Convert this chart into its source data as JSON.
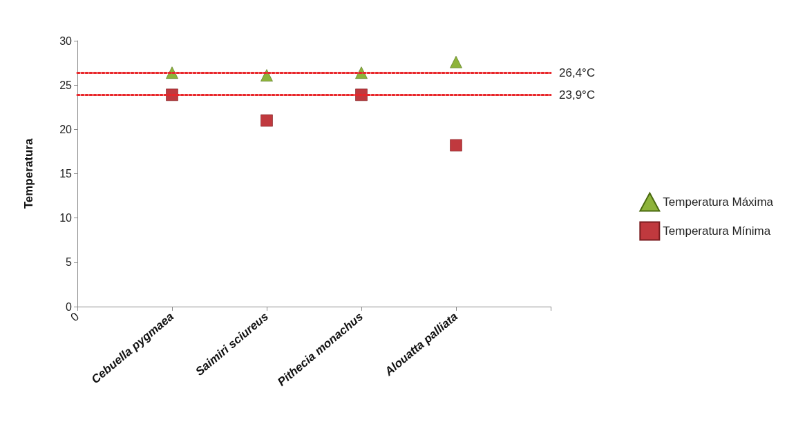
{
  "chart_data": {
    "type": "scatter",
    "ylabel": "Temperatura",
    "categories": [
      "0",
      "Cebuella pygmaea",
      "Saimiri sciureus",
      "Pithecia monachus",
      "Alouatta palliata",
      null
    ],
    "ylim": [
      0,
      30
    ],
    "yticks": [
      0,
      5,
      10,
      15,
      20,
      25,
      30
    ],
    "series": [
      {
        "name": "Temperatura Máxima",
        "color": "#8db33a",
        "marker": "triangle",
        "values": [
          null,
          26.4,
          26.1,
          26.4,
          27.6,
          null
        ]
      },
      {
        "name": "Temperatura Mínima",
        "color": "#c0393e",
        "marker": "square",
        "values": [
          null,
          23.9,
          21.0,
          23.9,
          18.2,
          null
        ]
      }
    ],
    "ref_lines": [
      {
        "axis": "y",
        "value": 26.4,
        "label": "26,4°C",
        "color": "#e8262a",
        "line_style": "dotted"
      },
      {
        "axis": "y",
        "value": 23.9,
        "label": "23,9°C",
        "color": "#e8262a",
        "line_style": "dotted"
      }
    ],
    "grid": false,
    "legend": "right"
  }
}
